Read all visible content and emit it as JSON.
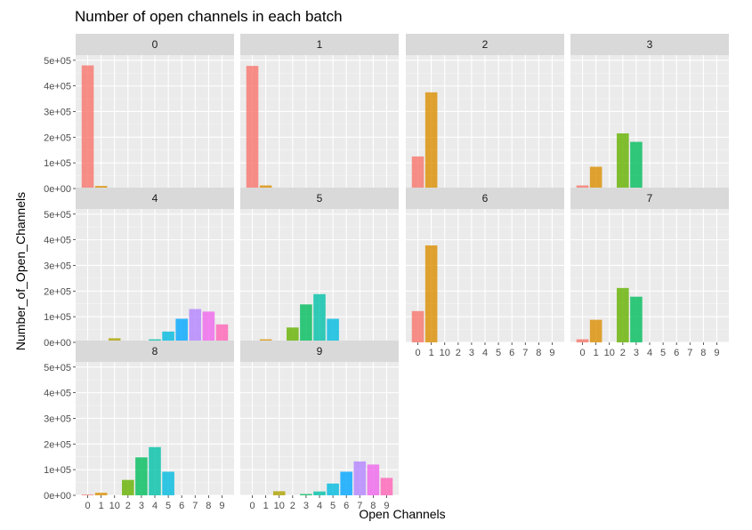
{
  "chart_data": {
    "type": "bar",
    "title": "Number of open channels in each batch",
    "xlabel": "Open Channels",
    "ylabel": "Number_of_Open_Channels",
    "categories": [
      "0",
      "1",
      "10",
      "2",
      "3",
      "4",
      "5",
      "6",
      "7",
      "8",
      "9"
    ],
    "y_ticks": [
      "0e+00",
      "1e+05",
      "2e+05",
      "3e+05",
      "4e+05",
      "5e+05"
    ],
    "ylim": [
      0,
      520000
    ],
    "grid": true,
    "legend": "none",
    "colors": [
      "#F8766D",
      "#DB8E00",
      "#AEA200",
      "#64B200",
      "#00BD5C",
      "#00C1A7",
      "#00BADE",
      "#00A6FF",
      "#B385FF",
      "#EF67EB",
      "#FF63B6"
    ],
    "panels": [
      {
        "label": "0",
        "values": [
          480000,
          10000,
          0,
          0,
          0,
          0,
          0,
          0,
          0,
          0,
          0
        ]
      },
      {
        "label": "1",
        "values": [
          478000,
          12000,
          0,
          0,
          0,
          0,
          0,
          0,
          0,
          0,
          0
        ]
      },
      {
        "label": "2",
        "values": [
          125000,
          375000,
          0,
          0,
          0,
          0,
          0,
          0,
          0,
          0,
          0
        ]
      },
      {
        "label": "3",
        "values": [
          12000,
          85000,
          0,
          215000,
          182000,
          0,
          0,
          0,
          0,
          0,
          0
        ]
      },
      {
        "label": "4",
        "values": [
          0,
          0,
          16000,
          0,
          5000,
          12000,
          42000,
          92000,
          130000,
          120000,
          70000
        ]
      },
      {
        "label": "5",
        "values": [
          0,
          12000,
          0,
          58000,
          148000,
          188000,
          92000,
          0,
          0,
          0,
          0
        ]
      },
      {
        "label": "6",
        "values": [
          122000,
          378000,
          0,
          0,
          0,
          0,
          0,
          0,
          0,
          0,
          0
        ]
      },
      {
        "label": "7",
        "values": [
          12000,
          88000,
          0,
          212000,
          178000,
          0,
          0,
          0,
          0,
          0,
          0
        ]
      },
      {
        "label": "8",
        "values": [
          3000,
          10000,
          0,
          60000,
          148000,
          188000,
          92000,
          0,
          0,
          0,
          0
        ]
      },
      {
        "label": "9",
        "values": [
          0,
          0,
          16000,
          0,
          5000,
          15000,
          46000,
          92000,
          132000,
          120000,
          68000
        ]
      }
    ]
  }
}
